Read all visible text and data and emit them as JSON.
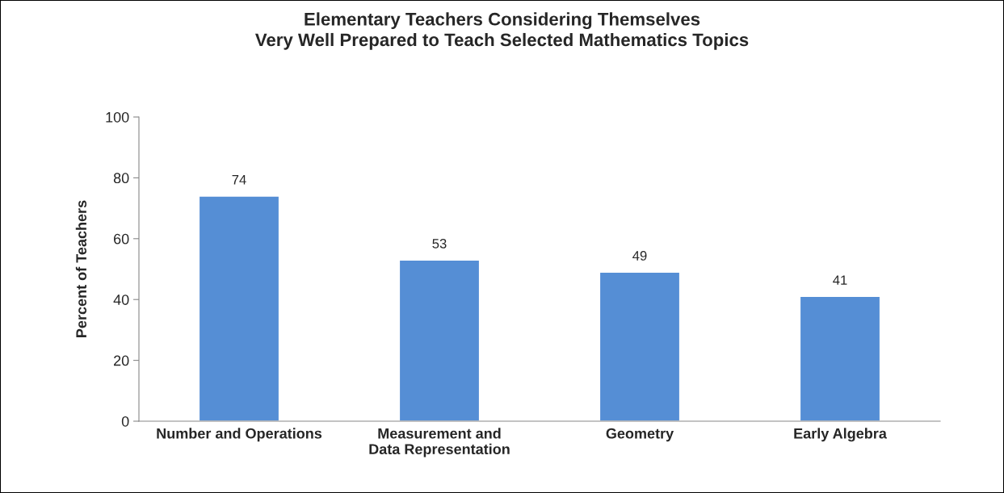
{
  "chart_data": {
    "type": "bar",
    "title": "Elementary Teachers Considering Themselves\nVery Well Prepared to Teach Selected Mathematics Topics",
    "ylabel": "Percent of Teachers",
    "categories": [
      "Number and Operations",
      "Measurement and\nData Representation",
      "Geometry",
      "Early Algebra"
    ],
    "values": [
      74,
      53,
      49,
      41
    ],
    "color": "#558ed5",
    "ylim": [
      0,
      100
    ],
    "yticks": [
      0,
      20,
      40,
      60,
      80,
      100
    ],
    "grid": false,
    "legend": false,
    "data_labels": true
  }
}
